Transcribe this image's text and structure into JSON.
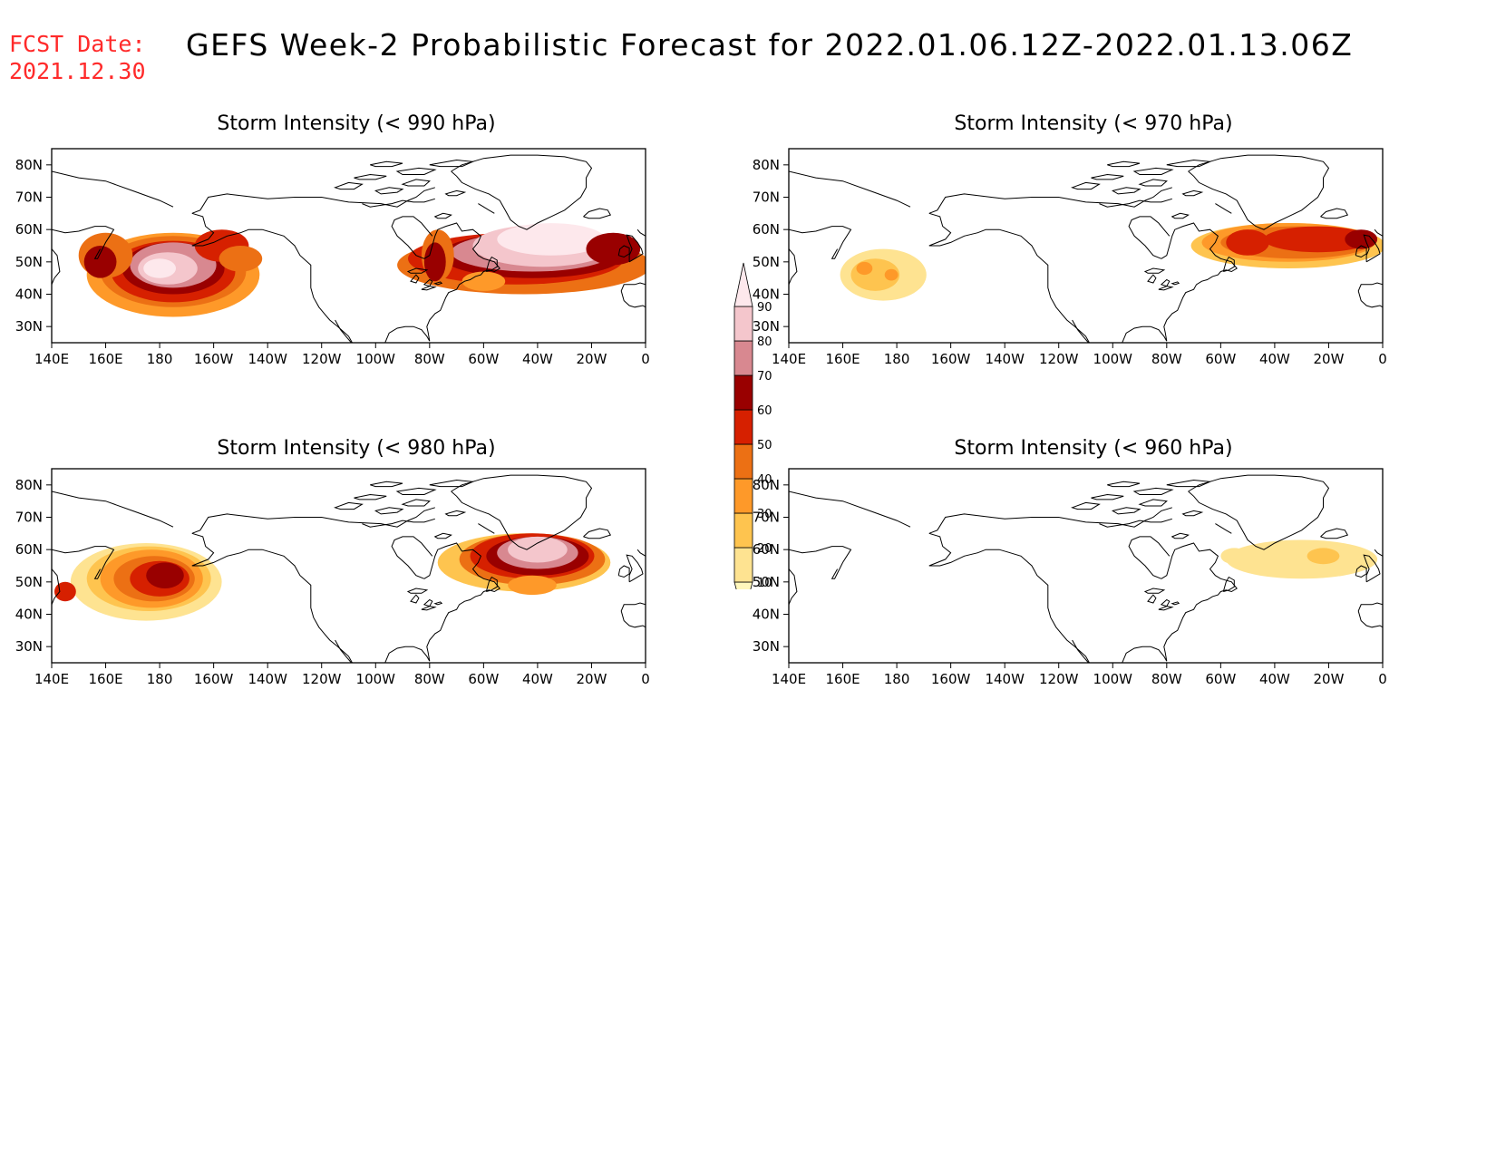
{
  "header": {
    "fcst_label": "FCST Date:",
    "fcst_date": "2021.12.30",
    "title": "GEFS Week-2 Probabilistic Forecast for 2022.01.06.12Z-2022.01.13.06Z"
  },
  "panels": [
    {
      "title": "Storm Intensity (< 990 hPa)",
      "threshold_hpa": 990,
      "position": "top-left"
    },
    {
      "title": "Storm Intensity (< 970 hPa)",
      "threshold_hpa": 970,
      "position": "top-right"
    },
    {
      "title": "Storm Intensity (< 980 hPa)",
      "threshold_hpa": 980,
      "position": "bottom-left"
    },
    {
      "title": "Storm Intensity (< 960 hPa)",
      "threshold_hpa": 960,
      "position": "bottom-right"
    }
  ],
  "axes": {
    "lat_labels": [
      "80N",
      "70N",
      "60N",
      "50N",
      "40N",
      "30N"
    ],
    "lon_labels": [
      "140E",
      "160E",
      "180",
      "160W",
      "140W",
      "120W",
      "100W",
      "80W",
      "60W",
      "40W",
      "20W",
      "0"
    ],
    "lat_range": [
      25,
      85
    ],
    "lon_range": [
      "140E",
      "0"
    ]
  },
  "colorbar": {
    "levels": [
      "10",
      "20",
      "30",
      "40",
      "50",
      "60",
      "70",
      "80",
      "90"
    ],
    "colors": [
      "#fff7bc",
      "#fee391",
      "#fec44f",
      "#fe9929",
      "#ec7014",
      "#d62000",
      "#990000",
      "#d88890",
      "#f4c6cc",
      "#fde8ec"
    ]
  }
}
